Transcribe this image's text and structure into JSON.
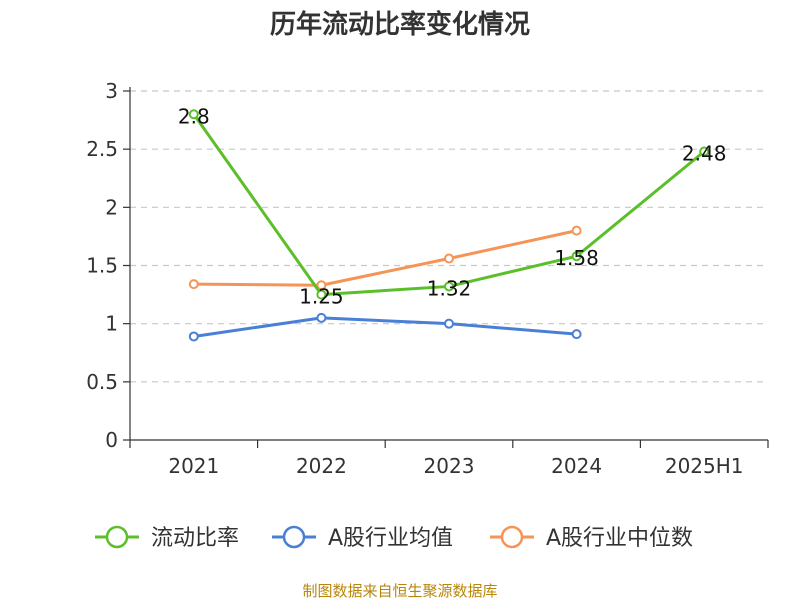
{
  "chart_data": {
    "type": "line",
    "title": "历年流动比率变化情况",
    "xlabel": "",
    "ylabel": "",
    "categories": [
      "2021",
      "2022",
      "2023",
      "2024",
      "2025H1"
    ],
    "ylim": [
      0,
      3
    ],
    "yticks": [
      "0",
      "0.5",
      "1",
      "1.5",
      "2",
      "2.5",
      "3"
    ],
    "grid": true,
    "legend_position": "bottom",
    "series": [
      {
        "name": "流动比率",
        "color": "#5bbf2a",
        "values": [
          2.8,
          1.25,
          1.32,
          1.58,
          2.48
        ],
        "labels": [
          "2.8",
          "1.25",
          "1.32",
          "1.58",
          "2.48"
        ]
      },
      {
        "name": "A股行业均值",
        "color": "#4a7fd6",
        "values": [
          0.89,
          1.05,
          1.0,
          0.91,
          null
        ]
      },
      {
        "name": "A股行业中位数",
        "color": "#f59455",
        "values": [
          1.34,
          1.33,
          1.56,
          1.8,
          null
        ]
      }
    ]
  },
  "footer": {
    "source": "制图数据来自恒生聚源数据库"
  }
}
